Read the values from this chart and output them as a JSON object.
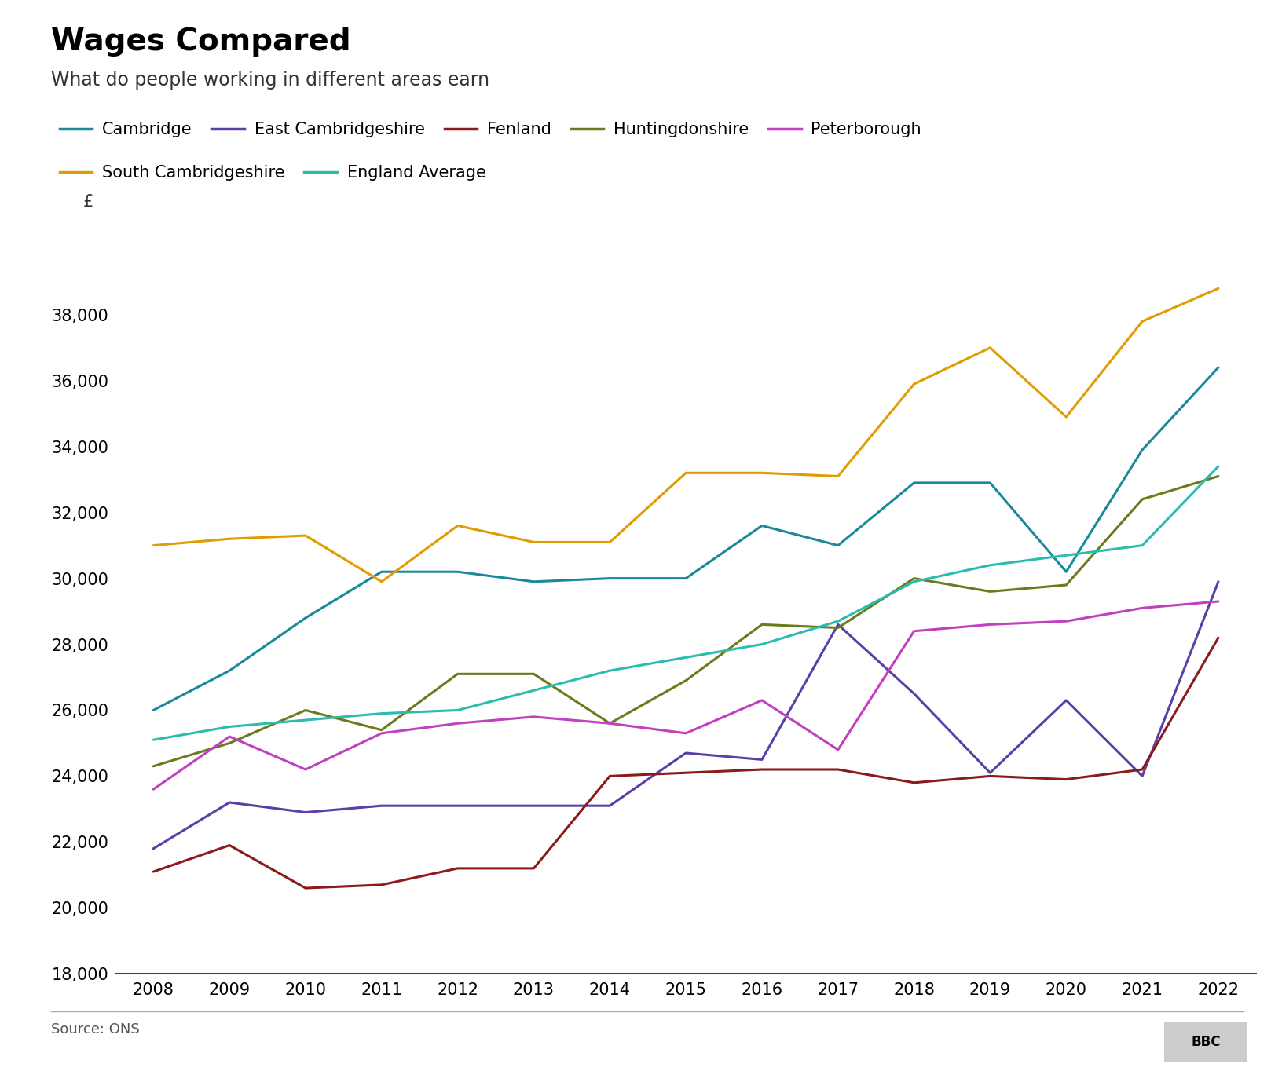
{
  "title": "Wages Compared",
  "subtitle": "What do people working in different areas earn",
  "ylabel": "£",
  "source": "Source: ONS",
  "years": [
    2008,
    2009,
    2010,
    2011,
    2012,
    2013,
    2014,
    2015,
    2016,
    2017,
    2018,
    2019,
    2020,
    2021,
    2022
  ],
  "series": [
    {
      "name": "Cambridge",
      "color": "#1a8a9a",
      "values": [
        26000,
        27200,
        28800,
        30200,
        30200,
        29900,
        30000,
        30000,
        31600,
        31000,
        32900,
        32900,
        30200,
        33900,
        36400
      ]
    },
    {
      "name": "East Cambridgeshire",
      "color": "#5b3ea8",
      "values": [
        21800,
        23200,
        22900,
        23100,
        23100,
        23100,
        23100,
        24700,
        24500,
        28600,
        26500,
        24100,
        26300,
        24000,
        29900
      ]
    },
    {
      "name": "Fenland",
      "color": "#8b1a1a",
      "values": [
        21100,
        21900,
        20600,
        20700,
        21200,
        21200,
        24000,
        24100,
        24200,
        24200,
        23800,
        24000,
        23900,
        24200,
        28200
      ]
    },
    {
      "name": "Huntingdonshire",
      "color": "#6b7a1a",
      "values": [
        24300,
        25000,
        26000,
        25400,
        27100,
        27100,
        25600,
        26900,
        28600,
        28500,
        30000,
        29600,
        29800,
        32400,
        33100
      ]
    },
    {
      "name": "Peterborough",
      "color": "#c040c0",
      "values": [
        23600,
        25200,
        24200,
        25300,
        25600,
        25800,
        25600,
        25300,
        26300,
        24800,
        28400,
        28600,
        28700,
        29100,
        29300
      ]
    },
    {
      "name": "South Cambridgeshire",
      "color": "#e09c00",
      "values": [
        31000,
        31200,
        31300,
        29900,
        31600,
        31100,
        31100,
        33200,
        33200,
        33100,
        35900,
        37000,
        34900,
        37800,
        38800
      ]
    },
    {
      "name": "England Average",
      "color": "#2abcb0",
      "values": [
        25100,
        25500,
        25700,
        25900,
        26000,
        26600,
        27200,
        27600,
        28000,
        28700,
        29900,
        30400,
        30700,
        31000,
        33400
      ]
    }
  ],
  "ylim": [
    18000,
    40000
  ],
  "yticks": [
    18000,
    20000,
    22000,
    24000,
    26000,
    28000,
    30000,
    32000,
    34000,
    36000,
    38000
  ],
  "background_color": "#ffffff",
  "linewidth": 2.2,
  "title_fontsize": 28,
  "subtitle_fontsize": 17,
  "legend_fontsize": 15,
  "tick_fontsize": 15,
  "source_fontsize": 13
}
